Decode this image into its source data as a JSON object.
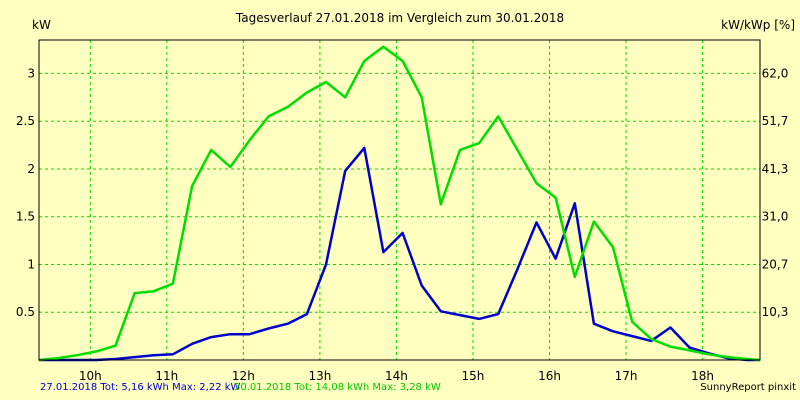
{
  "chart_data": {
    "type": "line",
    "title": "Tagesverlauf 27.01.2018 im Vergleich zum 30.01.2018",
    "ylabel_left": "kW",
    "ylabel_right": "kW/kWp [%]",
    "x_ticks": [
      "10h",
      "11h",
      "12h",
      "13h",
      "14h",
      "15h",
      "16h",
      "17h",
      "18h"
    ],
    "x_range": [
      9.33,
      18.75
    ],
    "ylim": [
      0,
      3.35
    ],
    "y_ticks_left": [
      "0.5",
      "1",
      "1.5",
      "2",
      "2.5",
      "3"
    ],
    "y_ticks_right": [
      "10,3",
      "20,7",
      "31,0",
      "41,3",
      "51,7",
      "62,0"
    ],
    "grid": true,
    "series": [
      {
        "label": "27.01.2018 Tot: 5,16 kWh Max: 2,22 kW",
        "color": "#0000CC",
        "x": [
          9.33,
          9.58,
          9.83,
          10.08,
          10.33,
          10.58,
          10.83,
          11.08,
          11.33,
          11.58,
          11.83,
          12.08,
          12.33,
          12.58,
          12.83,
          13.08,
          13.33,
          13.58,
          13.83,
          14.08,
          14.33,
          14.58,
          14.83,
          15.08,
          15.33,
          15.58,
          15.83,
          16.08,
          16.33,
          16.58,
          16.83,
          17.08,
          17.33,
          17.58,
          17.83,
          18.08,
          18.33,
          18.58,
          18.75
        ],
        "y": [
          0,
          0,
          0,
          0,
          0.01,
          0.03,
          0.05,
          0.06,
          0.17,
          0.24,
          0.27,
          0.27,
          0.33,
          0.38,
          0.48,
          1.0,
          1.98,
          2.22,
          1.13,
          1.33,
          0.78,
          0.51,
          0.47,
          0.43,
          0.48,
          0.95,
          1.44,
          1.06,
          1.64,
          0.38,
          0.3,
          0.25,
          0.2,
          0.34,
          0.13,
          0.07,
          0.02,
          0,
          0
        ]
      },
      {
        "label": "30.01.2018 Tot: 14,08 kWh Max: 3,28 kW",
        "color": "#00DD00",
        "x": [
          9.33,
          9.58,
          9.83,
          10.08,
          10.33,
          10.58,
          10.83,
          11.08,
          11.33,
          11.58,
          11.83,
          12.08,
          12.33,
          12.58,
          12.83,
          13.08,
          13.33,
          13.58,
          13.83,
          14.08,
          14.33,
          14.58,
          14.83,
          15.08,
          15.33,
          15.58,
          15.83,
          16.08,
          16.33,
          16.58,
          16.83,
          17.08,
          17.33,
          17.58,
          17.83,
          18.08,
          18.33,
          18.58,
          18.75
        ],
        "y": [
          0,
          0.02,
          0.05,
          0.09,
          0.15,
          0.7,
          0.72,
          0.8,
          1.82,
          2.2,
          2.02,
          2.3,
          2.55,
          2.65,
          2.8,
          2.91,
          2.75,
          3.13,
          3.28,
          3.13,
          2.75,
          1.63,
          2.2,
          2.27,
          2.55,
          2.2,
          1.85,
          1.7,
          0.87,
          1.45,
          1.18,
          0.4,
          0.22,
          0.14,
          0.1,
          0.06,
          0.03,
          0.01,
          0
        ]
      }
    ]
  },
  "footer": {
    "series1_label": "27.01.2018 Tot: 5,16 kWh Max: 2,22 kW",
    "series2_label": "30.01.2018 Tot: 14,08 kWh Max: 3,28 kW",
    "credit": "SunnyReport pinxit"
  },
  "colors": {
    "background": "#FFFFC0",
    "grid": "#00DD00",
    "series1": "#0000CC",
    "series2": "#00DD00"
  }
}
